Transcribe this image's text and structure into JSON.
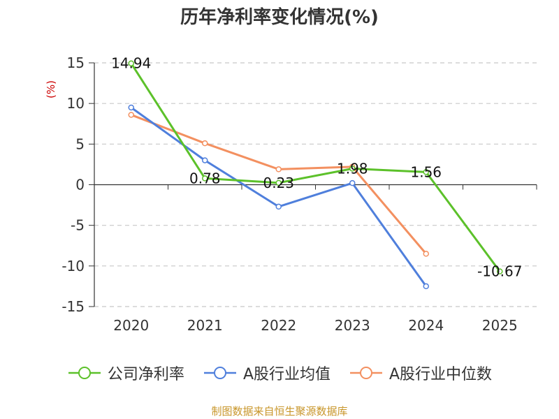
{
  "chart_data": {
    "type": "line",
    "title": "历年净利率变化情况(%)",
    "ylabel": "(%)",
    "xlabel": "",
    "categories": [
      "2020",
      "2021",
      "2022",
      "2023",
      "2024",
      "2025"
    ],
    "ylim": [
      -15,
      15
    ],
    "yticks": [
      15,
      10,
      5,
      0,
      -5,
      -10,
      -15
    ],
    "grid": true,
    "series": [
      {
        "name": "公司净利率",
        "color": "#5cc12a",
        "values": [
          14.94,
          0.78,
          0.23,
          1.98,
          1.56,
          -10.67
        ],
        "labels": [
          "14.94",
          "0.78",
          "0.23",
          "1.98",
          "1.56",
          "-10.67"
        ]
      },
      {
        "name": "A股行业均值",
        "color": "#4f7fdc",
        "values": [
          9.5,
          3.0,
          -2.7,
          0.2,
          -12.5,
          null
        ]
      },
      {
        "name": "A股行业中位数",
        "color": "#f39060",
        "values": [
          8.6,
          5.1,
          1.9,
          2.2,
          -8.5,
          null
        ]
      }
    ],
    "legend_position": "bottom"
  },
  "source": "制图数据来自恒生聚源数据库"
}
